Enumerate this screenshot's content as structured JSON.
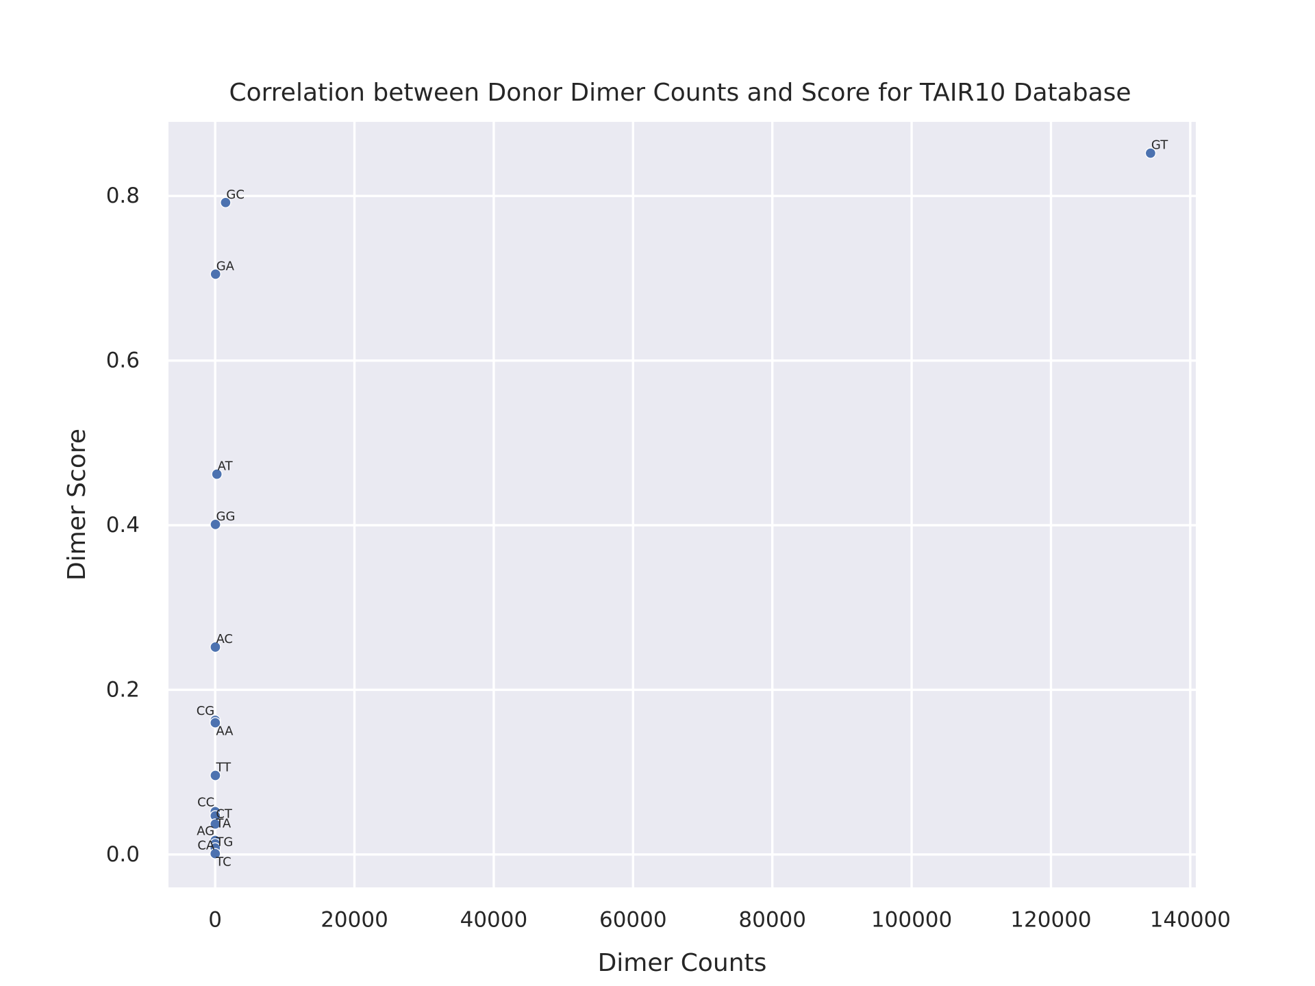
{
  "chart_data": {
    "type": "scatter",
    "title": "Correlation between Donor Dimer Counts and Score for TAIR10 Database",
    "xlabel": "Dimer Counts",
    "ylabel": "Dimer Score",
    "xlim": [
      -6700,
      140800
    ],
    "ylim": [
      -0.04,
      0.89
    ],
    "xticks": [
      0,
      20000,
      40000,
      60000,
      80000,
      100000,
      120000,
      140000
    ],
    "xtick_labels": [
      "0",
      "20000",
      "40000",
      "60000",
      "80000",
      "100000",
      "120000",
      "140000"
    ],
    "yticks": [
      0.0,
      0.2,
      0.4,
      0.6,
      0.8
    ],
    "ytick_labels": [
      "0.0",
      "0.2",
      "0.4",
      "0.6",
      "0.8"
    ],
    "grid": true,
    "marker_color": "#4c72b0",
    "background_color": "#eaeaf2",
    "points": [
      {
        "label": "GT",
        "x": 134300,
        "y": 0.852
      },
      {
        "label": "GC",
        "x": 1500,
        "y": 0.792
      },
      {
        "label": "GA",
        "x": 60,
        "y": 0.705
      },
      {
        "label": "AT",
        "x": 250,
        "y": 0.462
      },
      {
        "label": "GG",
        "x": 40,
        "y": 0.401
      },
      {
        "label": "AC",
        "x": 30,
        "y": 0.252
      },
      {
        "label": "CG",
        "x": 10,
        "y": 0.163
      },
      {
        "label": "AA",
        "x": 20,
        "y": 0.16
      },
      {
        "label": "TT",
        "x": 30,
        "y": 0.096
      },
      {
        "label": "CC",
        "x": 10,
        "y": 0.052
      },
      {
        "label": "CT",
        "x": 20,
        "y": 0.047
      },
      {
        "label": "TA",
        "x": 20,
        "y": 0.037
      },
      {
        "label": "AG",
        "x": 10,
        "y": 0.017
      },
      {
        "label": "TG",
        "x": 20,
        "y": 0.013
      },
      {
        "label": "CA",
        "x": 10,
        "y": 0.008
      },
      {
        "label": "TC",
        "x": 10,
        "y": 0.001
      }
    ]
  }
}
